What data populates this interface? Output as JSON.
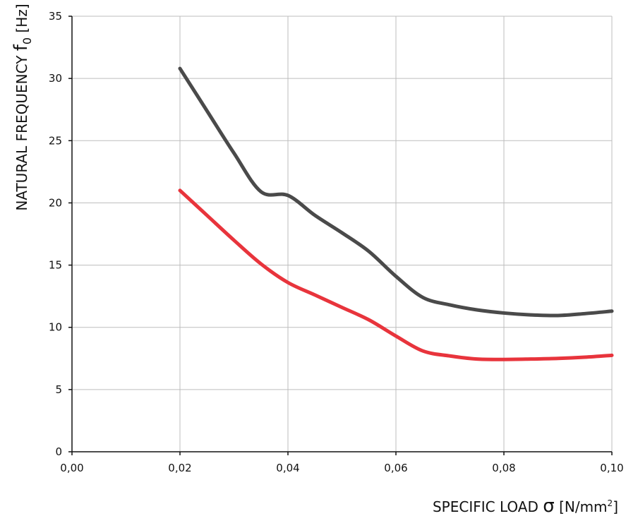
{
  "chart_data": {
    "type": "line",
    "title": "",
    "xlabel": {
      "prefix": "SPECIFIC LOAD ",
      "symbol": "σ",
      "unit_open": " [N/mm",
      "superscript": "2",
      "unit_close": "]"
    },
    "ylabel": {
      "prefix": "NATURAL FREQUENCY ",
      "symbol": "f",
      "subscript": "0",
      "unit": " [Hz]"
    },
    "xlim": [
      0,
      0.1
    ],
    "ylim": [
      0,
      35
    ],
    "x_ticks": [
      0,
      0.02,
      0.04,
      0.06,
      0.08,
      0.1
    ],
    "x_tick_labels": [
      "0,00",
      "0,02",
      "0,04",
      "0,06",
      "0,08",
      "0,10"
    ],
    "y_ticks": [
      0,
      5,
      10,
      15,
      20,
      25,
      30,
      35
    ],
    "y_tick_labels": [
      "0",
      "5",
      "10",
      "15",
      "20",
      "25",
      "30",
      "35"
    ],
    "grid": true,
    "series": [
      {
        "color": "#4a4a4a",
        "x": [
          0.02,
          0.025,
          0.03,
          0.035,
          0.04,
          0.045,
          0.05,
          0.055,
          0.06,
          0.065,
          0.07,
          0.075,
          0.08,
          0.085,
          0.09,
          0.095,
          0.1
        ],
        "y": [
          30.8,
          27.4,
          24.0,
          20.9,
          20.6,
          19.0,
          17.6,
          16.1,
          14.1,
          12.4,
          11.8,
          11.4,
          11.15,
          11.0,
          10.95,
          11.1,
          11.3
        ]
      },
      {
        "color": "#e8343c",
        "x": [
          0.02,
          0.025,
          0.03,
          0.035,
          0.04,
          0.045,
          0.05,
          0.055,
          0.06,
          0.065,
          0.07,
          0.075,
          0.08,
          0.085,
          0.09,
          0.095,
          0.1
        ],
        "y": [
          21.0,
          19.0,
          17.0,
          15.1,
          13.6,
          12.6,
          11.6,
          10.6,
          9.3,
          8.1,
          7.7,
          7.45,
          7.42,
          7.45,
          7.5,
          7.6,
          7.75
        ]
      }
    ]
  }
}
